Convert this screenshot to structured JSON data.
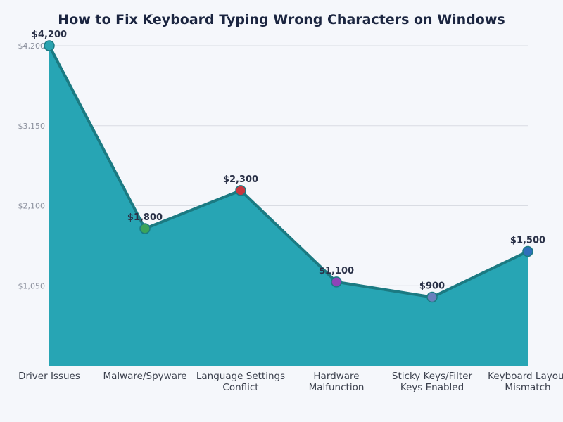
{
  "chart_data": {
    "type": "area",
    "title": "How to Fix Keyboard Typing Wrong Characters on Windows",
    "categories": [
      [
        "Driver Issues"
      ],
      [
        "Malware/Spyware"
      ],
      [
        "Language Settings",
        "Conflict"
      ],
      [
        "Hardware",
        "Malfunction"
      ],
      [
        "Sticky Keys/Filter",
        "Keys Enabled"
      ],
      [
        "Keyboard Layout",
        "Mismatch"
      ]
    ],
    "values": [
      4200,
      1800,
      2300,
      1100,
      900,
      1500
    ],
    "data_labels": [
      "$4,200",
      "$1,800",
      "$2,300",
      "$1,100",
      "$900",
      "$1,500"
    ],
    "yticks": [
      1050,
      2100,
      3150,
      4200
    ],
    "ytick_labels": [
      "$1,050",
      "$2,100",
      "$3,150",
      "$4,200"
    ],
    "ylim": [
      0,
      4200
    ],
    "grid": "horizontal",
    "colors": {
      "fill": "#27a5b4",
      "line": "#1b7a82",
      "markers": [
        "#2aa3b0",
        "#3aa35a",
        "#c8363f",
        "#8e44b8",
        "#6a7fbd",
        "#2f6fba"
      ]
    }
  }
}
